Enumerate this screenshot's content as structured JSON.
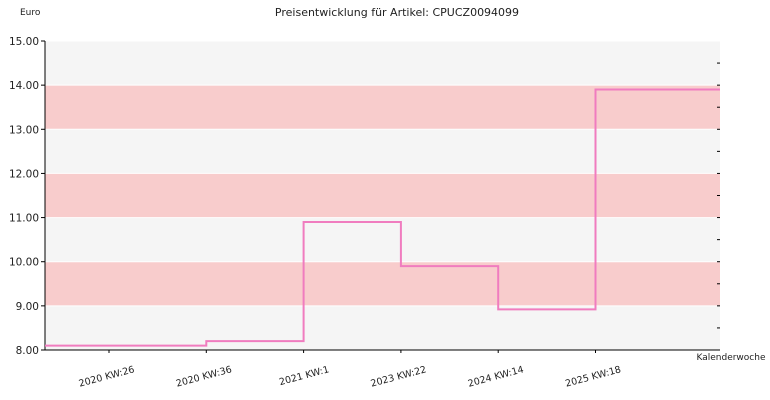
{
  "chart_data": {
    "type": "line",
    "title": "Preisentwicklung für Artikel: CPUCZ0094099",
    "ylabel": "Euro",
    "xlabel": "Kalenderwoche",
    "ylim": [
      8.0,
      15.0
    ],
    "y_ticks": [
      "8.00",
      "9.00",
      "10.00",
      "11.00",
      "12.00",
      "13.00",
      "14.00",
      "15.00"
    ],
    "x_tick_labels": [
      "2020 KW:26",
      "2020 KW:36",
      "2021 KW:1",
      "2023 KW:22",
      "2024 KW:14",
      "2025 KW:18"
    ],
    "step_line": true,
    "grid": true,
    "colors": {
      "line": "#f07cbf",
      "band_light": "#f5f5f5",
      "band_dark": "#f8cccc",
      "axis": "#000000"
    },
    "series": [
      {
        "x": [
          "2020 KW:21",
          "2020 KW:26",
          "2020 KW:36",
          "2021 KW:1",
          "2023 KW:22",
          "2024 KW:14",
          "2025 KW:18",
          "2025 KW:25"
        ],
        "values": [
          8.1,
          8.1,
          8.2,
          10.9,
          9.9,
          8.92,
          13.9,
          13.9
        ]
      }
    ]
  }
}
